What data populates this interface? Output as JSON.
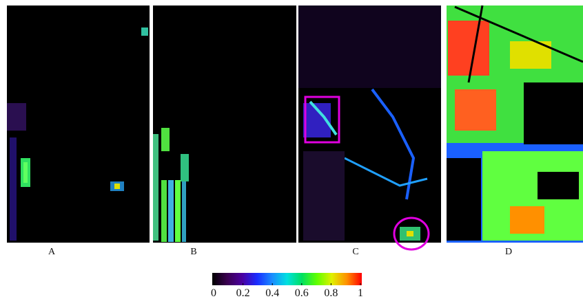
{
  "panels": [
    {
      "label": "A"
    },
    {
      "label": "B"
    },
    {
      "label": "C"
    },
    {
      "label": "D"
    }
  ],
  "colorbar": {
    "range": [
      0,
      1
    ],
    "ticks": [
      0,
      0.2,
      0.4,
      0.6,
      0.8,
      1
    ]
  }
}
